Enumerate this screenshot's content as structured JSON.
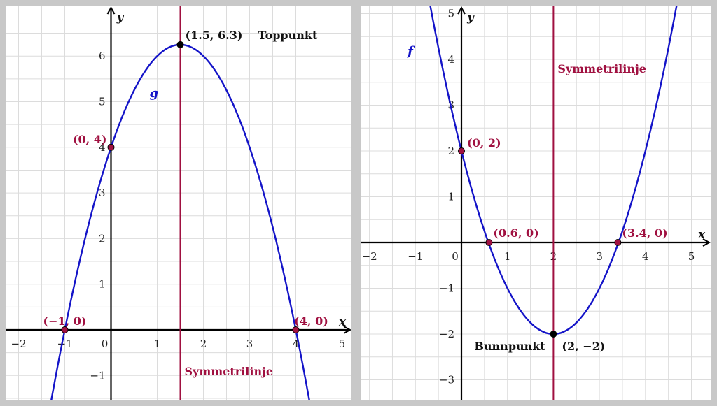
{
  "chart_data": [
    {
      "type": "line",
      "title": "",
      "xlabel": "x",
      "ylabel": "y",
      "xlim": [
        -2.2,
        5.2
      ],
      "ylim": [
        -1.5,
        6.8
      ],
      "x_ticks": [
        "−2",
        "−1",
        "0",
        "1",
        "2",
        "3",
        "4",
        "5"
      ],
      "y_ticks": [
        "−1",
        "1",
        "2",
        "3",
        "4",
        "5",
        "6"
      ],
      "grid": true,
      "series": [
        {
          "name": "g",
          "color": "#1414c8",
          "x": [
            -1.3,
            -1,
            -0.5,
            0,
            0.5,
            1,
            1.5,
            2,
            2.5,
            3,
            3.5,
            4,
            4.3
          ],
          "y": [
            -1.59,
            0,
            2.25,
            4,
            5.25,
            6,
            6.25,
            6,
            5.25,
            4,
            2.25,
            0,
            -1.59
          ]
        }
      ],
      "symmetry_line": {
        "x": 1.5,
        "label": "Symmetrilinje",
        "color": "#a01040"
      },
      "points": [
        {
          "x": 1.5,
          "y": 6.25,
          "label": "(1.5, 6.3)",
          "note": "Toppunkt",
          "color": "#000000"
        },
        {
          "x": 0,
          "y": 4,
          "label": "(0, 4)",
          "color": "#a01040"
        },
        {
          "x": -1,
          "y": 0,
          "label": "(−1, 0)",
          "color": "#a01040"
        },
        {
          "x": 4,
          "y": 0,
          "label": "(4, 0)",
          "color": "#a01040"
        }
      ]
    },
    {
      "type": "line",
      "title": "",
      "xlabel": "x",
      "ylabel": "y",
      "xlim": [
        -2.2,
        5.4
      ],
      "ylim": [
        -3.3,
        5.1
      ],
      "x_ticks": [
        "−2",
        "−1",
        "0",
        "1",
        "2",
        "3",
        "4",
        "5"
      ],
      "y_ticks": [
        "−3",
        "−2",
        "−1",
        "1",
        "2",
        "3",
        "4",
        "5"
      ],
      "grid": true,
      "series": [
        {
          "name": "f",
          "color": "#1414c8",
          "x": [
            -0.7,
            -0.5,
            0,
            0.5,
            1,
            1.5,
            2,
            2.5,
            3,
            3.5,
            4,
            4.5,
            4.7
          ],
          "y": [
            5.29,
            4.25,
            2,
            0.25,
            -1,
            -1.75,
            -2,
            -1.75,
            -1,
            0.25,
            2,
            4.25,
            5.29
          ]
        }
      ],
      "symmetry_line": {
        "x": 2,
        "label": "Symmetrilinje",
        "color": "#a01040"
      },
      "points": [
        {
          "x": 2,
          "y": -2,
          "label": "(2, −2)",
          "note": "Bunnpunkt",
          "color": "#000000"
        },
        {
          "x": 0,
          "y": 2,
          "label": "(0, 2)",
          "color": "#a01040"
        },
        {
          "x": 0.6,
          "y": 0,
          "label": "(0.6, 0)",
          "color": "#a01040"
        },
        {
          "x": 3.4,
          "y": 0,
          "label": "(3.4, 0)",
          "color": "#a01040"
        }
      ]
    }
  ]
}
